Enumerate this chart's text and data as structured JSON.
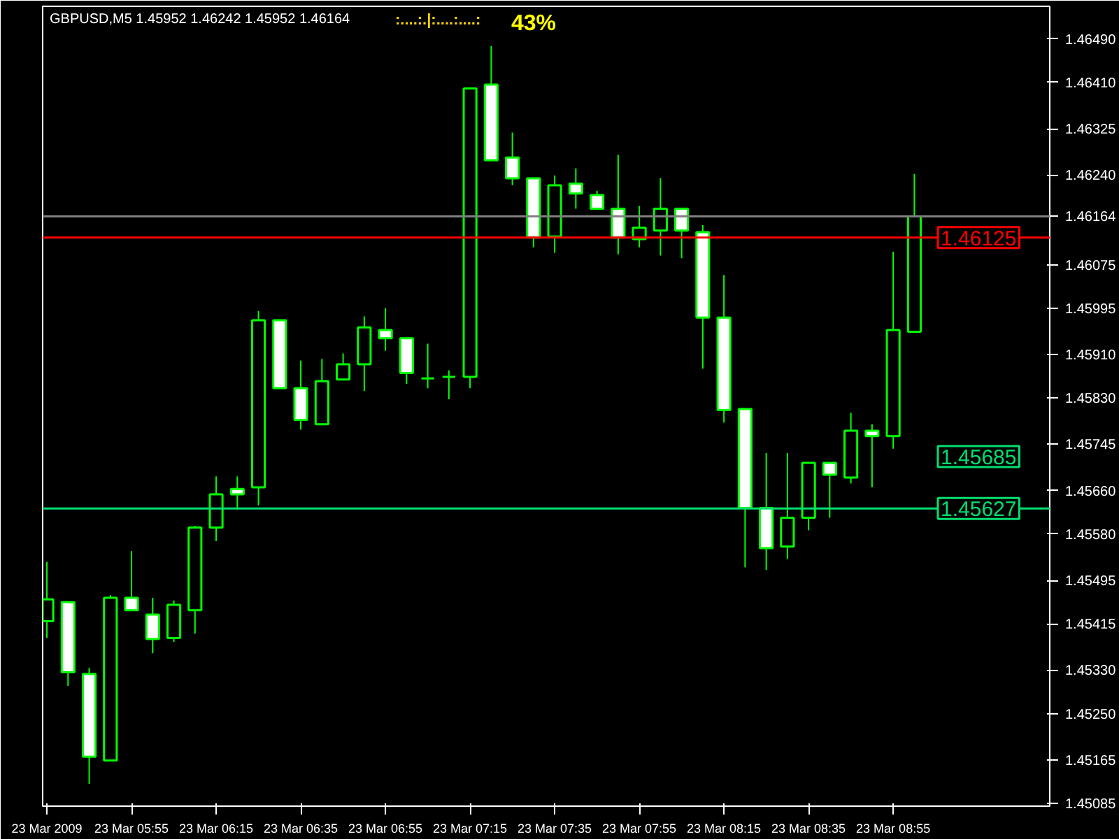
{
  "chart_data": {
    "type": "candlestick",
    "title": "GBPUSD,M5  1.45952 1.46242 1.45952 1.46164",
    "annotations": [
      ":....:.|:....:....:",
      "43%",
      "1.45685"
    ],
    "color": "#00ff00",
    "x": [
      "2009-03-23T05:35",
      "2009-03-23T05:40",
      "2009-03-23T05:45",
      "2009-03-23T05:50",
      "2009-03-23T05:55",
      "2009-03-23T06:00",
      "2009-03-23T06:05",
      "2009-03-23T06:10",
      "2009-03-23T06:15",
      "2009-03-23T06:20",
      "2009-03-23T06:25",
      "2009-03-23T06:30",
      "2009-03-23T06:35",
      "2009-03-23T06:40",
      "2009-03-23T06:45",
      "2009-03-23T06:50",
      "2009-03-23T06:55",
      "2009-03-23T07:00",
      "2009-03-23T07:05",
      "2009-03-23T07:10",
      "2009-03-23T07:15",
      "2009-03-23T07:20",
      "2009-03-23T07:25",
      "2009-03-23T07:30",
      "2009-03-23T07:35",
      "2009-03-23T07:40",
      "2009-03-23T07:45",
      "2009-03-23T07:50",
      "2009-03-23T07:55",
      "2009-03-23T08:00",
      "2009-03-23T08:05",
      "2009-03-23T08:10",
      "2009-03-23T08:15",
      "2009-03-23T08:20",
      "2009-03-23T08:25",
      "2009-03-23T08:30",
      "2009-03-23T08:35",
      "2009-03-23T08:40",
      "2009-03-23T08:45",
      "2009-03-23T08:50",
      "2009-03-23T08:55",
      "2009-03-23T09:00"
    ],
    "ohlc": [
      [
        1.4542,
        1.45529,
        1.45389,
        1.4546
      ],
      [
        1.45455,
        1.45455,
        1.45301,
        1.45326
      ],
      [
        1.45323,
        1.45334,
        1.45121,
        1.45171
      ],
      [
        1.45164,
        1.45468,
        1.45164,
        1.45463
      ],
      [
        1.45463,
        1.45549,
        1.4544,
        1.4544
      ],
      [
        1.45432,
        1.45463,
        1.45361,
        1.45387
      ],
      [
        1.45389,
        1.45458,
        1.45382,
        1.4545
      ],
      [
        1.4544,
        1.45595,
        1.45397,
        1.45592
      ],
      [
        1.45592,
        1.45686,
        1.45567,
        1.45653
      ],
      [
        1.45663,
        1.45686,
        1.45625,
        1.45653
      ],
      [
        1.45666,
        1.4599,
        1.45633,
        1.45973
      ],
      [
        1.45973,
        1.45973,
        1.45848,
        1.45848
      ],
      [
        1.45848,
        1.45899,
        1.45772,
        1.4579
      ],
      [
        1.45782,
        1.45902,
        1.4578,
        1.45861
      ],
      [
        1.45864,
        1.45912,
        1.45864,
        1.45892
      ],
      [
        1.45892,
        1.4598,
        1.45843,
        1.4596
      ],
      [
        1.45955,
        1.45995,
        1.45917,
        1.4594
      ],
      [
        1.4594,
        1.4594,
        1.45856,
        1.45876
      ],
      [
        1.45866,
        1.4593,
        1.45848,
        1.45866
      ],
      [
        1.45869,
        1.45881,
        1.45828,
        1.45869
      ],
      [
        1.45869,
        1.46399,
        1.45848,
        1.46399
      ],
      [
        1.46406,
        1.46477,
        1.46267,
        1.46267
      ],
      [
        1.46272,
        1.46318,
        1.46221,
        1.46234
      ],
      [
        1.46234,
        1.46234,
        1.46107,
        1.46125
      ],
      [
        1.46127,
        1.46239,
        1.46097,
        1.46221
      ],
      [
        1.46224,
        1.46252,
        1.46178,
        1.46206
      ],
      [
        1.46203,
        1.46211,
        1.46178,
        1.46178
      ],
      [
        1.46178,
        1.46277,
        1.46094,
        1.46125
      ],
      [
        1.46122,
        1.46183,
        1.46107,
        1.46143
      ],
      [
        1.46138,
        1.46234,
        1.46092,
        1.46178
      ],
      [
        1.46178,
        1.46178,
        1.46087,
        1.46138
      ],
      [
        1.46135,
        1.46148,
        1.45884,
        1.45978
      ],
      [
        1.45978,
        1.46056,
        1.45785,
        1.45808
      ],
      [
        1.4581,
        1.4581,
        1.45519,
        1.45628
      ],
      [
        1.45628,
        1.45729,
        1.45514,
        1.45554
      ],
      [
        1.45557,
        1.45729,
        1.45534,
        1.4561
      ],
      [
        1.4561,
        1.45711,
        1.45587,
        1.45711
      ],
      [
        1.45711,
        1.45711,
        1.4561,
        1.45689
      ],
      [
        1.45684,
        1.45803,
        1.45673,
        1.4577
      ],
      [
        1.4577,
        1.45782,
        1.45666,
        1.4576
      ],
      [
        1.4576,
        1.46099,
        1.45737,
        1.45955
      ],
      [
        1.45952,
        1.46242,
        1.45952,
        1.46164
      ]
    ],
    "xlim": [
      "2009-03-23T05:34",
      "2009-03-23T09:32"
    ],
    "xticks": [
      {
        "value": "2009-03-23T05:35",
        "label": "23 Mar 2009"
      },
      {
        "value": "2009-03-23T05:55",
        "label": "23 Mar 05:55"
      },
      {
        "value": "2009-03-23T06:15",
        "label": "23 Mar 06:15"
      },
      {
        "value": "2009-03-23T06:35",
        "label": "23 Mar 06:35"
      },
      {
        "value": "2009-03-23T06:55",
        "label": "23 Mar 06:55"
      },
      {
        "value": "2009-03-23T07:15",
        "label": "23 Mar 07:15"
      },
      {
        "value": "2009-03-23T07:35",
        "label": "23 Mar 07:35"
      },
      {
        "value": "2009-03-23T07:55",
        "label": "23 Mar 07:55"
      },
      {
        "value": "2009-03-23T08:15",
        "label": "23 Mar 08:15"
      },
      {
        "value": "2009-03-23T08:35",
        "label": "23 Mar 08:35"
      },
      {
        "value": "2009-03-23T08:55",
        "label": "23 Mar 08:55"
      }
    ],
    "ylim": [
      1.4508,
      1.4655
    ],
    "yticks": [
      {
        "value": 1.4649,
        "label": "1.46490"
      },
      {
        "value": 1.4641,
        "label": "1.46410"
      },
      {
        "value": 1.46325,
        "label": "1.46325"
      },
      {
        "value": 1.4624,
        "label": "1.46240"
      },
      {
        "value": 1.46164,
        "label": "1.46164"
      },
      {
        "value": 1.46075,
        "label": "1.46075"
      },
      {
        "value": 1.45995,
        "label": "1.45995"
      },
      {
        "value": 1.4591,
        "label": "1.45910"
      },
      {
        "value": 1.4583,
        "label": "1.45830"
      },
      {
        "value": 1.45745,
        "label": "1.45745"
      },
      {
        "value": 1.4566,
        "label": "1.45660"
      },
      {
        "value": 1.4558,
        "label": "1.45580"
      },
      {
        "value": 1.45495,
        "label": "1.45495"
      },
      {
        "value": 1.45415,
        "label": "1.45415"
      },
      {
        "value": 1.4533,
        "label": "1.45330"
      },
      {
        "value": 1.4525,
        "label": "1.45250"
      },
      {
        "value": 1.45165,
        "label": "1.45165"
      },
      {
        "value": 1.45085,
        "label": "1.45085"
      }
    ],
    "ref_lines": [
      {
        "axis": "y",
        "value": 1.46164,
        "color": "#808080"
      },
      {
        "axis": "y",
        "value": 1.46125,
        "label": "1.46125",
        "color": "#ff0000"
      },
      {
        "axis": "y",
        "value": 1.45627,
        "label": "1.45627",
        "color": "#00e070"
      }
    ],
    "grid": false
  }
}
